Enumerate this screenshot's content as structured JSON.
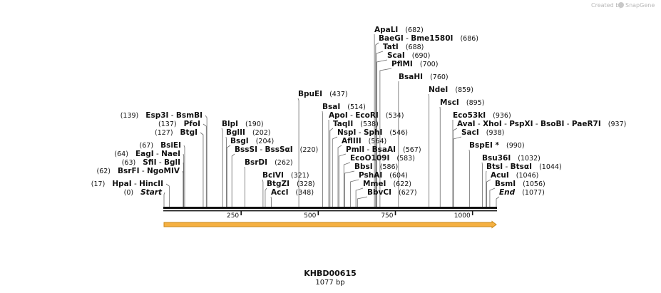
{
  "brand": {
    "prefix": "Created by",
    "name": "SnapGene",
    "logo_icon": "snapgene-logo-icon"
  },
  "sequence": {
    "name": "KHBD00615",
    "length_label": "1077 bp",
    "length": 1077
  },
  "axis_ticks": [
    {
      "value": 250,
      "label": "250"
    },
    {
      "value": 500,
      "label": "500"
    },
    {
      "value": 750,
      "label": "750"
    },
    {
      "value": 1000,
      "label": "1000"
    }
  ],
  "feature": {
    "color": "#f5b041",
    "edge_color": "#c98a1a",
    "start": 0,
    "end": 1077,
    "direction": "forward"
  },
  "enzyme_labels": [
    {
      "pos_label": "(0)",
      "names": [
        "Start"
      ],
      "site": 0,
      "italic": true,
      "leader": "right"
    },
    {
      "pos_label": "(17)",
      "names": [
        "HpaI",
        "HincII"
      ],
      "site": 17,
      "leader": "right"
    },
    {
      "pos_label": "(62)",
      "names": [
        "BsrFI",
        "NgoMIV"
      ],
      "site": 62,
      "leader": "right"
    },
    {
      "pos_label": "(63)",
      "names": [
        "SfiI",
        "BglI"
      ],
      "site": 63,
      "leader": "right"
    },
    {
      "pos_label": "(64)",
      "names": [
        "EagI",
        "NaeI"
      ],
      "site": 64,
      "leader": "right"
    },
    {
      "pos_label": "(67)",
      "names": [
        "BsiEI"
      ],
      "site": 67,
      "leader": "right"
    },
    {
      "pos_label": "(127)",
      "names": [
        "BtgI"
      ],
      "site": 127,
      "leader": "right"
    },
    {
      "pos_label": "(137)",
      "names": [
        "PfoI"
      ],
      "site": 137,
      "leader": "right"
    },
    {
      "pos_label": "(139)",
      "names": [
        "Esp3I",
        "BsmBI"
      ],
      "site": 139,
      "leader": "right"
    },
    {
      "pos_label": "(190)",
      "names": [
        "BlpI"
      ],
      "site": 190,
      "leader": "left"
    },
    {
      "pos_label": "(202)",
      "names": [
        "BglII"
      ],
      "site": 202,
      "leader": "left"
    },
    {
      "pos_label": "(204)",
      "names": [
        "BsgI"
      ],
      "site": 204,
      "leader": "left"
    },
    {
      "pos_label": "(220)",
      "names": [
        "BssSI",
        "BssSαI"
      ],
      "site": 220,
      "leader": "left"
    },
    {
      "pos_label": "(262)",
      "names": [
        "BsrDI"
      ],
      "site": 262,
      "leader": "left"
    },
    {
      "pos_label": "(321)",
      "names": [
        "BciVI"
      ],
      "site": 321,
      "leader": "left"
    },
    {
      "pos_label": "(328)",
      "names": [
        "BtgZI"
      ],
      "site": 328,
      "leader": "left"
    },
    {
      "pos_label": "(348)",
      "names": [
        "AccI"
      ],
      "site": 348,
      "leader": "left"
    },
    {
      "pos_label": "(437)",
      "names": [
        "BpuEI"
      ],
      "site": 437,
      "leader": "left"
    },
    {
      "pos_label": "(514)",
      "names": [
        "BsaI"
      ],
      "site": 514,
      "leader": "left"
    },
    {
      "pos_label": "(534)",
      "names": [
        "ApoI",
        "EcoRI"
      ],
      "site": 534,
      "leader": "left"
    },
    {
      "pos_label": "(538)",
      "names": [
        "TaqII"
      ],
      "site": 538,
      "leader": "left"
    },
    {
      "pos_label": "(546)",
      "names": [
        "NspI",
        "SphI"
      ],
      "site": 546,
      "leader": "left"
    },
    {
      "pos_label": "(564)",
      "names": [
        "AflIII"
      ],
      "site": 564,
      "leader": "left"
    },
    {
      "pos_label": "(567)",
      "names": [
        "PmlI",
        "BsaAI"
      ],
      "site": 567,
      "leader": "left"
    },
    {
      "pos_label": "(583)",
      "names": [
        "EcoO109I"
      ],
      "site": 583,
      "leader": "left"
    },
    {
      "pos_label": "(586)",
      "names": [
        "BbsI"
      ],
      "site": 586,
      "leader": "left"
    },
    {
      "pos_label": "(604)",
      "names": [
        "PshAI"
      ],
      "site": 604,
      "leader": "left"
    },
    {
      "pos_label": "(622)",
      "names": [
        "MmeI"
      ],
      "site": 622,
      "leader": "left"
    },
    {
      "pos_label": "(627)",
      "names": [
        "BbvCI"
      ],
      "site": 627,
      "leader": "left"
    },
    {
      "pos_label": "(682)",
      "names": [
        "ApaLI"
      ],
      "site": 682,
      "leader": "left"
    },
    {
      "pos_label": "(686)",
      "names": [
        "BaeGI",
        "Bme1580I"
      ],
      "site": 686,
      "leader": "left"
    },
    {
      "pos_label": "(688)",
      "names": [
        "TatI"
      ],
      "site": 688,
      "leader": "left"
    },
    {
      "pos_label": "(690)",
      "names": [
        "ScaI"
      ],
      "site": 690,
      "leader": "left"
    },
    {
      "pos_label": "(700)",
      "names": [
        "PflMI"
      ],
      "site": 700,
      "leader": "left"
    },
    {
      "pos_label": "(760)",
      "names": [
        "BsaHI"
      ],
      "site": 760,
      "leader": "left"
    },
    {
      "pos_label": "(859)",
      "names": [
        "NdeI"
      ],
      "site": 859,
      "leader": "left"
    },
    {
      "pos_label": "(895)",
      "names": [
        "MscI"
      ],
      "site": 895,
      "leader": "left"
    },
    {
      "pos_label": "(936)",
      "names": [
        "Eco53kI"
      ],
      "site": 936,
      "leader": "left"
    },
    {
      "pos_label": "(937)",
      "names": [
        "AvaI",
        "XhoI",
        "PspXI",
        "BsoBI",
        "PaeR7I"
      ],
      "site": 937,
      "leader": "left"
    },
    {
      "pos_label": "(938)",
      "names": [
        "SacI"
      ],
      "site": 938,
      "leader": "left"
    },
    {
      "pos_label": "(990)",
      "names": [
        "BspEI *"
      ],
      "site": 990,
      "leader": "left"
    },
    {
      "pos_label": "(1032)",
      "names": [
        "Bsu36I"
      ],
      "site": 1032,
      "leader": "left"
    },
    {
      "pos_label": "(1044)",
      "names": [
        "BtsI",
        "BtsαI"
      ],
      "site": 1044,
      "leader": "left"
    },
    {
      "pos_label": "(1046)",
      "names": [
        "AcuI"
      ],
      "site": 1046,
      "leader": "left"
    },
    {
      "pos_label": "(1056)",
      "names": [
        "BsmI"
      ],
      "site": 1056,
      "leader": "left"
    },
    {
      "pos_label": "(1077)",
      "names": [
        "End"
      ],
      "site": 1077,
      "italic": true,
      "leader": "left"
    }
  ]
}
